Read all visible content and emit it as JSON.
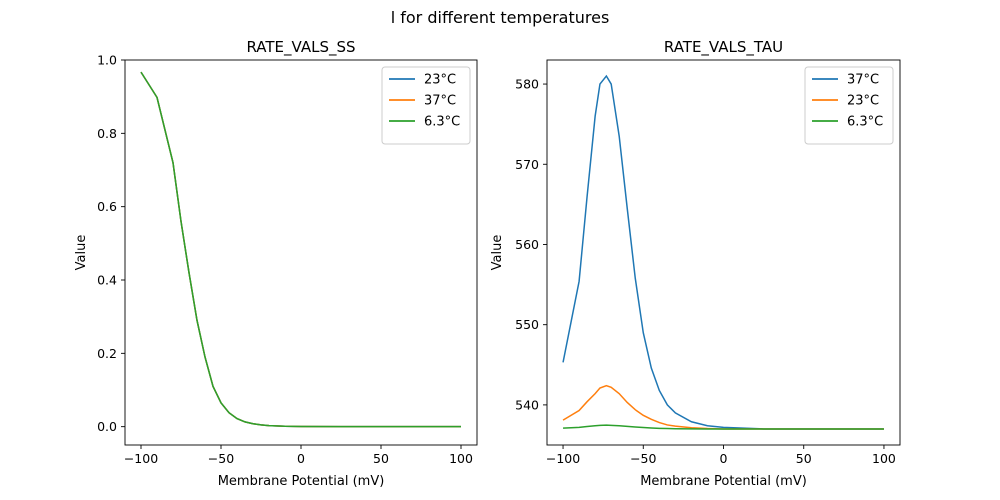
{
  "figure": {
    "suptitle": "l for different temperatures"
  },
  "chart_data": [
    {
      "type": "line",
      "title": "RATE_VALS_SS",
      "xlabel": "Membrane Potential (mV)",
      "ylabel": "Value",
      "xlim": [
        -110,
        110
      ],
      "ylim": [
        -0.05,
        1.0
      ],
      "xticks": [
        -100,
        -50,
        0,
        50,
        100
      ],
      "xtick_labels": [
        "−100",
        "−50",
        "0",
        "50",
        "100"
      ],
      "yticks": [
        0.0,
        0.2,
        0.4,
        0.6,
        0.8,
        1.0
      ],
      "ytick_labels": [
        "0.0",
        "0.2",
        "0.4",
        "0.6",
        "0.8",
        "1.0"
      ],
      "grid": false,
      "legend_position": "top-right",
      "x": [
        -100,
        -90,
        -80,
        -75,
        -70,
        -65,
        -60,
        -55,
        -50,
        -45,
        -40,
        -35,
        -30,
        -25,
        -20,
        -10,
        0,
        25,
        50,
        75,
        100
      ],
      "series": [
        {
          "name": "23°C",
          "color": "#1f77b4",
          "values": [
            0.967,
            0.898,
            0.72,
            0.56,
            0.42,
            0.29,
            0.19,
            0.11,
            0.065,
            0.038,
            0.022,
            0.013,
            0.008,
            0.005,
            0.003,
            0.001,
            0.0005,
            0.0,
            0.0,
            0.0,
            0.0
          ]
        },
        {
          "name": "37°C",
          "color": "#ff7f0e",
          "values": [
            0.967,
            0.898,
            0.72,
            0.56,
            0.42,
            0.29,
            0.19,
            0.11,
            0.065,
            0.038,
            0.022,
            0.013,
            0.008,
            0.005,
            0.003,
            0.001,
            0.0005,
            0.0,
            0.0,
            0.0,
            0.0
          ]
        },
        {
          "name": "6.3°C",
          "color": "#2ca02c",
          "values": [
            0.967,
            0.898,
            0.72,
            0.56,
            0.42,
            0.29,
            0.19,
            0.11,
            0.065,
            0.038,
            0.022,
            0.013,
            0.008,
            0.005,
            0.003,
            0.001,
            0.0005,
            0.0,
            0.0,
            0.0,
            0.0
          ]
        }
      ]
    },
    {
      "type": "line",
      "title": "RATE_VALS_TAU",
      "xlabel": "Membrane Potential (mV)",
      "ylabel": "Value",
      "xlim": [
        -110,
        110
      ],
      "ylim": [
        535.0,
        583.0
      ],
      "xticks": [
        -100,
        -50,
        0,
        50,
        100
      ],
      "xtick_labels": [
        "−100",
        "−50",
        "0",
        "50",
        "100"
      ],
      "yticks": [
        540,
        550,
        560,
        570,
        580
      ],
      "ytick_labels": [
        "540",
        "550",
        "560",
        "570",
        "580"
      ],
      "grid": false,
      "legend_position": "top-right",
      "x": [
        -100,
        -90,
        -85,
        -80,
        -77,
        -73,
        -70,
        -65,
        -60,
        -55,
        -50,
        -45,
        -40,
        -35,
        -30,
        -20,
        -10,
        0,
        25,
        50,
        75,
        100
      ],
      "series": [
        {
          "name": "37°C",
          "color": "#1f77b4",
          "values": [
            545.3,
            555.4,
            566.0,
            576.0,
            580.0,
            581.0,
            580.0,
            573.5,
            564.5,
            555.8,
            549.0,
            544.6,
            541.8,
            540.0,
            539.0,
            537.9,
            537.4,
            537.2,
            537.0,
            537.0,
            537.0,
            537.0
          ]
        },
        {
          "name": "23°C",
          "color": "#ff7f0e",
          "values": [
            538.1,
            539.3,
            540.4,
            541.4,
            542.1,
            542.4,
            542.2,
            541.4,
            540.3,
            539.4,
            538.7,
            538.2,
            537.8,
            537.5,
            537.35,
            537.15,
            537.05,
            537.0,
            537.0,
            537.0,
            537.0,
            537.0
          ]
        },
        {
          "name": "6.3°C",
          "color": "#2ca02c",
          "values": [
            537.1,
            537.2,
            537.3,
            537.4,
            537.45,
            537.48,
            537.45,
            537.4,
            537.32,
            537.25,
            537.18,
            537.12,
            537.08,
            537.05,
            537.03,
            537.01,
            537.0,
            537.0,
            537.0,
            537.0,
            537.0,
            537.0
          ]
        }
      ]
    }
  ]
}
